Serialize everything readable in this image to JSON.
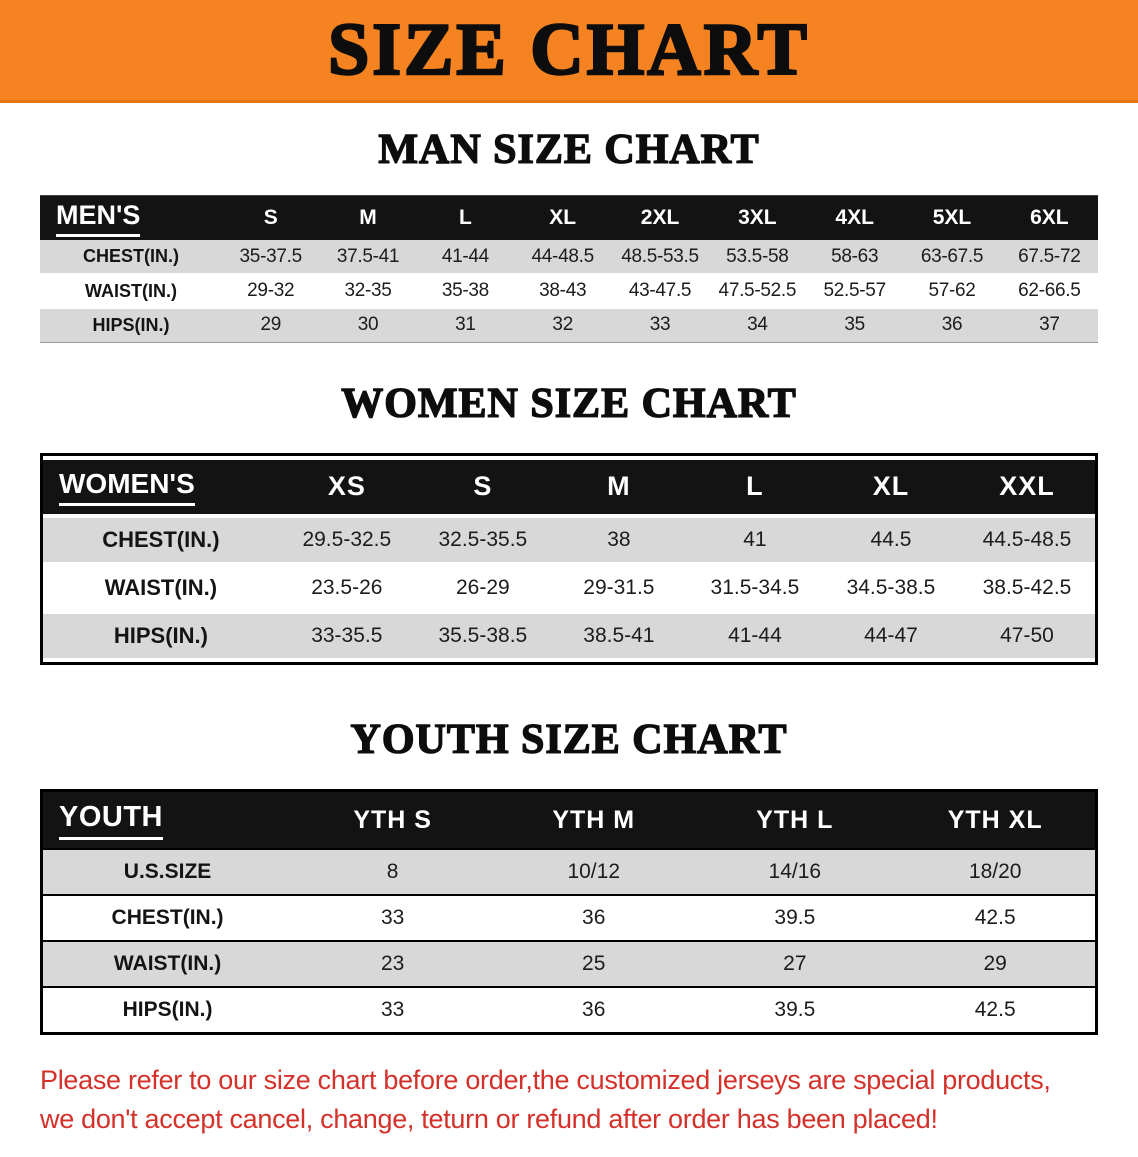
{
  "banner": {
    "title": "SIZE CHART"
  },
  "colors": {
    "banner_bg": "#f58321",
    "header_bg": "#131313",
    "row_gray": "#d8d8d8",
    "disclaimer_red": "#d3312a"
  },
  "sections": [
    {
      "heading": "MAN SIZE CHART",
      "table": {
        "header": [
          "MEN'S",
          "S",
          "M",
          "L",
          "XL",
          "2XL",
          "3XL",
          "4XL",
          "5XL",
          "6XL"
        ],
        "rows": [
          {
            "label": "CHEST(IN.)",
            "values": [
              "35-37.5",
              "37.5-41",
              "41-44",
              "44-48.5",
              "48.5-53.5",
              "53.5-58",
              "58-63",
              "63-67.5",
              "67.5-72"
            ]
          },
          {
            "label": "WAIST(IN.)",
            "values": [
              "29-32",
              "32-35",
              "35-38",
              "38-43",
              "43-47.5",
              "47.5-52.5",
              "52.5-57",
              "57-62",
              "62-66.5"
            ]
          },
          {
            "label": "HIPS(IN.)",
            "values": [
              "29",
              "30",
              "31",
              "32",
              "33",
              "34",
              "35",
              "36",
              "37"
            ]
          }
        ]
      }
    },
    {
      "heading": "WOMEN SIZE CHART",
      "table": {
        "header": [
          "WOMEN'S",
          "XS",
          "S",
          "M",
          "L",
          "XL",
          "XXL"
        ],
        "rows": [
          {
            "label": "CHEST(IN.)",
            "values": [
              "29.5-32.5",
              "32.5-35.5",
              "38",
              "41",
              "44.5",
              "44.5-48.5"
            ]
          },
          {
            "label": "WAIST(IN.)",
            "values": [
              "23.5-26",
              "26-29",
              "29-31.5",
              "31.5-34.5",
              "34.5-38.5",
              "38.5-42.5"
            ]
          },
          {
            "label": "HIPS(IN.)",
            "values": [
              "33-35.5",
              "35.5-38.5",
              "38.5-41",
              "41-44",
              "44-47",
              "47-50"
            ]
          }
        ]
      }
    },
    {
      "heading": "YOUTH SIZE CHART",
      "table": {
        "header": [
          "YOUTH",
          "YTH S",
          "YTH M",
          "YTH L",
          "YTH XL"
        ],
        "rows": [
          {
            "label": "U.S.SIZE",
            "values": [
              "8",
              "10/12",
              "14/16",
              "18/20"
            ]
          },
          {
            "label": "CHEST(IN.)",
            "values": [
              "33",
              "36",
              "39.5",
              "42.5"
            ]
          },
          {
            "label": "WAIST(IN.)",
            "values": [
              "23",
              "25",
              "27",
              "29"
            ]
          },
          {
            "label": "HIPS(IN.)",
            "values": [
              "33",
              "36",
              "39.5",
              "42.5"
            ]
          }
        ]
      }
    }
  ],
  "disclaimer": {
    "line1": "Please refer to our size chart before order,the customized jerseys are special products,",
    "line2": "we don't accept cancel, change, teturn or refund after order has been placed!"
  }
}
